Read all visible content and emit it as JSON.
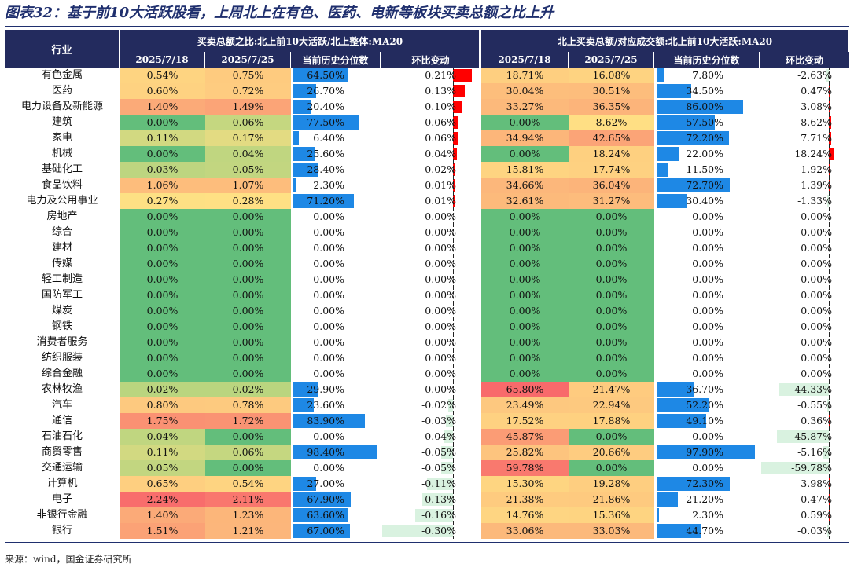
{
  "title": "图表32：基于前10大活跃股看，上周北上在有色、医药、电新等板块买卖总额之比上升",
  "source": "来源：wind，国金证券研究所",
  "header": {
    "industry": "行业",
    "group_left": "买卖总额之比:北上前10大活跃/北上整体:MA20",
    "group_right": "北上买卖总额/对应成交额:北上前10大活跃:MA20",
    "col_date1": "2025/7/18",
    "col_date2": "2025/7/25",
    "col_pct": "当前历史分位数",
    "col_chg": "环比变动"
  },
  "colors": {
    "header_bg": "#232b5e",
    "green": "#63be7b",
    "light_green": "#b5d47f",
    "yellow": "#ffe084",
    "orange": "#fcb47a",
    "red": "#f8696b",
    "blue_bar": "#1e88e5",
    "neg_bar": "#d9f2e0",
    "pos_bar": "#ff0000"
  },
  "rows": [
    {
      "industry": "有色金属",
      "l_d1": "0.54%",
      "l_d1_val": 0.54,
      "l_d2": "0.75%",
      "l_d2_val": 0.75,
      "l_pct": "64.50%",
      "l_pct_val": 64.5,
      "l_chg": "0.21%",
      "l_chg_val": 0.21,
      "r_d1": "18.71%",
      "r_d1_val": 18.71,
      "r_d2": "16.08%",
      "r_d2_val": 16.08,
      "r_pct": "7.80%",
      "r_pct_val": 7.8,
      "r_chg": "-2.63%",
      "r_chg_val": -2.63
    },
    {
      "industry": "医药",
      "l_d1": "0.60%",
      "l_d1_val": 0.6,
      "l_d2": "0.72%",
      "l_d2_val": 0.72,
      "l_pct": "26.70%",
      "l_pct_val": 26.7,
      "l_chg": "0.13%",
      "l_chg_val": 0.13,
      "r_d1": "30.04%",
      "r_d1_val": 30.04,
      "r_d2": "30.51%",
      "r_d2_val": 30.51,
      "r_pct": "34.50%",
      "r_pct_val": 34.5,
      "r_chg": "0.47%",
      "r_chg_val": 0.47
    },
    {
      "industry": "电力设备及新能源",
      "l_d1": "1.40%",
      "l_d1_val": 1.4,
      "l_d2": "1.49%",
      "l_d2_val": 1.49,
      "l_pct": "20.40%",
      "l_pct_val": 20.4,
      "l_chg": "0.10%",
      "l_chg_val": 0.1,
      "r_d1": "33.27%",
      "r_d1_val": 33.27,
      "r_d2": "36.35%",
      "r_d2_val": 36.35,
      "r_pct": "86.00%",
      "r_pct_val": 86.0,
      "r_chg": "3.08%",
      "r_chg_val": 3.08
    },
    {
      "industry": "建筑",
      "l_d1": "0.00%",
      "l_d1_val": 0.0,
      "l_d2": "0.06%",
      "l_d2_val": 0.06,
      "l_pct": "77.50%",
      "l_pct_val": 77.5,
      "l_chg": "0.06%",
      "l_chg_val": 0.06,
      "r_d1": "0.00%",
      "r_d1_val": 0.0,
      "r_d2": "8.62%",
      "r_d2_val": 8.62,
      "r_pct": "57.50%",
      "r_pct_val": 57.5,
      "r_chg": "8.62%",
      "r_chg_val": 8.62
    },
    {
      "industry": "家电",
      "l_d1": "0.11%",
      "l_d1_val": 0.11,
      "l_d2": "0.17%",
      "l_d2_val": 0.17,
      "l_pct": "6.40%",
      "l_pct_val": 6.4,
      "l_chg": "0.06%",
      "l_chg_val": 0.06,
      "r_d1": "34.94%",
      "r_d1_val": 34.94,
      "r_d2": "42.65%",
      "r_d2_val": 42.65,
      "r_pct": "72.20%",
      "r_pct_val": 72.2,
      "r_chg": "7.71%",
      "r_chg_val": 7.71
    },
    {
      "industry": "机械",
      "l_d1": "0.00%",
      "l_d1_val": 0.0,
      "l_d2": "0.04%",
      "l_d2_val": 0.04,
      "l_pct": "25.60%",
      "l_pct_val": 25.6,
      "l_chg": "0.04%",
      "l_chg_val": 0.04,
      "r_d1": "0.00%",
      "r_d1_val": 0.0,
      "r_d2": "18.24%",
      "r_d2_val": 18.24,
      "r_pct": "22.00%",
      "r_pct_val": 22.0,
      "r_chg": "18.24%",
      "r_chg_val": 18.24
    },
    {
      "industry": "基础化工",
      "l_d1": "0.03%",
      "l_d1_val": 0.03,
      "l_d2": "0.05%",
      "l_d2_val": 0.05,
      "l_pct": "28.40%",
      "l_pct_val": 28.4,
      "l_chg": "0.02%",
      "l_chg_val": 0.02,
      "r_d1": "15.81%",
      "r_d1_val": 15.81,
      "r_d2": "17.74%",
      "r_d2_val": 17.74,
      "r_pct": "11.50%",
      "r_pct_val": 11.5,
      "r_chg": "1.92%",
      "r_chg_val": 1.92
    },
    {
      "industry": "食品饮料",
      "l_d1": "1.06%",
      "l_d1_val": 1.06,
      "l_d2": "1.07%",
      "l_d2_val": 1.07,
      "l_pct": "2.30%",
      "l_pct_val": 2.3,
      "l_chg": "0.01%",
      "l_chg_val": 0.01,
      "r_d1": "34.66%",
      "r_d1_val": 34.66,
      "r_d2": "36.04%",
      "r_d2_val": 36.04,
      "r_pct": "72.70%",
      "r_pct_val": 72.7,
      "r_chg": "1.39%",
      "r_chg_val": 1.39
    },
    {
      "industry": "电力及公用事业",
      "l_d1": "0.27%",
      "l_d1_val": 0.27,
      "l_d2": "0.28%",
      "l_d2_val": 0.28,
      "l_pct": "71.20%",
      "l_pct_val": 71.2,
      "l_chg": "0.01%",
      "l_chg_val": 0.01,
      "r_d1": "32.61%",
      "r_d1_val": 32.61,
      "r_d2": "31.27%",
      "r_d2_val": 31.27,
      "r_pct": "30.40%",
      "r_pct_val": 30.4,
      "r_chg": "-1.33%",
      "r_chg_val": -1.33
    },
    {
      "industry": "房地产",
      "l_d1": "0.00%",
      "l_d1_val": 0,
      "l_d2": "0.00%",
      "l_d2_val": 0,
      "l_pct": "0.00%",
      "l_pct_val": 0,
      "l_chg": "0.00%",
      "l_chg_val": 0,
      "r_d1": "0.00%",
      "r_d1_val": 0,
      "r_d2": "0.00%",
      "r_d2_val": 0,
      "r_pct": "0.00%",
      "r_pct_val": 0,
      "r_chg": "0.00%",
      "r_chg_val": 0
    },
    {
      "industry": "综合",
      "l_d1": "0.00%",
      "l_d1_val": 0,
      "l_d2": "0.00%",
      "l_d2_val": 0,
      "l_pct": "0.00%",
      "l_pct_val": 0,
      "l_chg": "0.00%",
      "l_chg_val": 0,
      "r_d1": "0.00%",
      "r_d1_val": 0,
      "r_d2": "0.00%",
      "r_d2_val": 0,
      "r_pct": "0.00%",
      "r_pct_val": 0,
      "r_chg": "0.00%",
      "r_chg_val": 0
    },
    {
      "industry": "建材",
      "l_d1": "0.00%",
      "l_d1_val": 0,
      "l_d2": "0.00%",
      "l_d2_val": 0,
      "l_pct": "0.00%",
      "l_pct_val": 0,
      "l_chg": "0.00%",
      "l_chg_val": 0,
      "r_d1": "0.00%",
      "r_d1_val": 0,
      "r_d2": "0.00%",
      "r_d2_val": 0,
      "r_pct": "0.00%",
      "r_pct_val": 0,
      "r_chg": "0.00%",
      "r_chg_val": 0
    },
    {
      "industry": "传媒",
      "l_d1": "0.00%",
      "l_d1_val": 0,
      "l_d2": "0.00%",
      "l_d2_val": 0,
      "l_pct": "0.00%",
      "l_pct_val": 0,
      "l_chg": "0.00%",
      "l_chg_val": 0,
      "r_d1": "0.00%",
      "r_d1_val": 0,
      "r_d2": "0.00%",
      "r_d2_val": 0,
      "r_pct": "0.00%",
      "r_pct_val": 0,
      "r_chg": "0.00%",
      "r_chg_val": 0
    },
    {
      "industry": "轻工制造",
      "l_d1": "0.00%",
      "l_d1_val": 0,
      "l_d2": "0.00%",
      "l_d2_val": 0,
      "l_pct": "0.00%",
      "l_pct_val": 0,
      "l_chg": "0.00%",
      "l_chg_val": 0,
      "r_d1": "0.00%",
      "r_d1_val": 0,
      "r_d2": "0.00%",
      "r_d2_val": 0,
      "r_pct": "0.00%",
      "r_pct_val": 0,
      "r_chg": "0.00%",
      "r_chg_val": 0
    },
    {
      "industry": "国防军工",
      "l_d1": "0.00%",
      "l_d1_val": 0,
      "l_d2": "0.00%",
      "l_d2_val": 0,
      "l_pct": "0.00%",
      "l_pct_val": 0,
      "l_chg": "0.00%",
      "l_chg_val": 0,
      "r_d1": "0.00%",
      "r_d1_val": 0,
      "r_d2": "0.00%",
      "r_d2_val": 0,
      "r_pct": "0.00%",
      "r_pct_val": 0,
      "r_chg": "0.00%",
      "r_chg_val": 0
    },
    {
      "industry": "煤炭",
      "l_d1": "0.00%",
      "l_d1_val": 0,
      "l_d2": "0.00%",
      "l_d2_val": 0,
      "l_pct": "0.00%",
      "l_pct_val": 0,
      "l_chg": "0.00%",
      "l_chg_val": 0,
      "r_d1": "0.00%",
      "r_d1_val": 0,
      "r_d2": "0.00%",
      "r_d2_val": 0,
      "r_pct": "0.00%",
      "r_pct_val": 0,
      "r_chg": "0.00%",
      "r_chg_val": 0
    },
    {
      "industry": "钢铁",
      "l_d1": "0.00%",
      "l_d1_val": 0,
      "l_d2": "0.00%",
      "l_d2_val": 0,
      "l_pct": "0.00%",
      "l_pct_val": 0,
      "l_chg": "0.00%",
      "l_chg_val": 0,
      "r_d1": "0.00%",
      "r_d1_val": 0,
      "r_d2": "0.00%",
      "r_d2_val": 0,
      "r_pct": "0.00%",
      "r_pct_val": 0,
      "r_chg": "0.00%",
      "r_chg_val": 0
    },
    {
      "industry": "消费者服务",
      "l_d1": "0.00%",
      "l_d1_val": 0,
      "l_d2": "0.00%",
      "l_d2_val": 0,
      "l_pct": "0.00%",
      "l_pct_val": 0,
      "l_chg": "0.00%",
      "l_chg_val": 0,
      "r_d1": "0.00%",
      "r_d1_val": 0,
      "r_d2": "0.00%",
      "r_d2_val": 0,
      "r_pct": "0.00%",
      "r_pct_val": 0,
      "r_chg": "0.00%",
      "r_chg_val": 0
    },
    {
      "industry": "纺织服装",
      "l_d1": "0.00%",
      "l_d1_val": 0,
      "l_d2": "0.00%",
      "l_d2_val": 0,
      "l_pct": "0.00%",
      "l_pct_val": 0,
      "l_chg": "0.00%",
      "l_chg_val": 0,
      "r_d1": "0.00%",
      "r_d1_val": 0,
      "r_d2": "0.00%",
      "r_d2_val": 0,
      "r_pct": "0.00%",
      "r_pct_val": 0,
      "r_chg": "0.00%",
      "r_chg_val": 0
    },
    {
      "industry": "综合金融",
      "l_d1": "0.00%",
      "l_d1_val": 0,
      "l_d2": "0.00%",
      "l_d2_val": 0,
      "l_pct": "0.00%",
      "l_pct_val": 0,
      "l_chg": "0.00%",
      "l_chg_val": 0,
      "r_d1": "0.00%",
      "r_d1_val": 0,
      "r_d2": "0.00%",
      "r_d2_val": 0,
      "r_pct": "0.00%",
      "r_pct_val": 0,
      "r_chg": "0.00%",
      "r_chg_val": 0
    },
    {
      "industry": "农林牧渔",
      "l_d1": "0.02%",
      "l_d1_val": 0.02,
      "l_d2": "0.02%",
      "l_d2_val": 0.02,
      "l_pct": "29.90%",
      "l_pct_val": 29.9,
      "l_chg": "0.00%",
      "l_chg_val": 0.0,
      "r_d1": "65.80%",
      "r_d1_val": 65.8,
      "r_d2": "21.47%",
      "r_d2_val": 21.47,
      "r_pct": "36.70%",
      "r_pct_val": 36.7,
      "r_chg": "-44.33%",
      "r_chg_val": -44.33
    },
    {
      "industry": "汽车",
      "l_d1": "0.80%",
      "l_d1_val": 0.8,
      "l_d2": "0.78%",
      "l_d2_val": 0.78,
      "l_pct": "23.60%",
      "l_pct_val": 23.6,
      "l_chg": "-0.02%",
      "l_chg_val": -0.02,
      "r_d1": "23.49%",
      "r_d1_val": 23.49,
      "r_d2": "22.94%",
      "r_d2_val": 22.94,
      "r_pct": "52.20%",
      "r_pct_val": 52.2,
      "r_chg": "-0.55%",
      "r_chg_val": -0.55
    },
    {
      "industry": "通信",
      "l_d1": "1.75%",
      "l_d1_val": 1.75,
      "l_d2": "1.72%",
      "l_d2_val": 1.72,
      "l_pct": "83.90%",
      "l_pct_val": 83.9,
      "l_chg": "-0.03%",
      "l_chg_val": -0.03,
      "r_d1": "17.52%",
      "r_d1_val": 17.52,
      "r_d2": "17.88%",
      "r_d2_val": 17.88,
      "r_pct": "49.10%",
      "r_pct_val": 49.1,
      "r_chg": "0.36%",
      "r_chg_val": 0.36
    },
    {
      "industry": "石油石化",
      "l_d1": "0.04%",
      "l_d1_val": 0.04,
      "l_d2": "0.00%",
      "l_d2_val": 0.0,
      "l_pct": "0.00%",
      "l_pct_val": 0.0,
      "l_chg": "-0.04%",
      "l_chg_val": -0.04,
      "r_d1": "45.87%",
      "r_d1_val": 45.87,
      "r_d2": "0.00%",
      "r_d2_val": 0.0,
      "r_pct": "0.00%",
      "r_pct_val": 0.0,
      "r_chg": "-45.87%",
      "r_chg_val": -45.87
    },
    {
      "industry": "商贸零售",
      "l_d1": "0.11%",
      "l_d1_val": 0.11,
      "l_d2": "0.06%",
      "l_d2_val": 0.06,
      "l_pct": "98.40%",
      "l_pct_val": 98.4,
      "l_chg": "-0.05%",
      "l_chg_val": -0.05,
      "r_d1": "25.82%",
      "r_d1_val": 25.82,
      "r_d2": "20.66%",
      "r_d2_val": 20.66,
      "r_pct": "97.90%",
      "r_pct_val": 97.9,
      "r_chg": "-5.16%",
      "r_chg_val": -5.16
    },
    {
      "industry": "交通运输",
      "l_d1": "0.05%",
      "l_d1_val": 0.05,
      "l_d2": "0.00%",
      "l_d2_val": 0.0,
      "l_pct": "0.00%",
      "l_pct_val": 0.0,
      "l_chg": "-0.05%",
      "l_chg_val": -0.05,
      "r_d1": "59.78%",
      "r_d1_val": 59.78,
      "r_d2": "0.00%",
      "r_d2_val": 0.0,
      "r_pct": "0.00%",
      "r_pct_val": 0.0,
      "r_chg": "-59.78%",
      "r_chg_val": -59.78
    },
    {
      "industry": "计算机",
      "l_d1": "0.65%",
      "l_d1_val": 0.65,
      "l_d2": "0.54%",
      "l_d2_val": 0.54,
      "l_pct": "27.00%",
      "l_pct_val": 27.0,
      "l_chg": "-0.11%",
      "l_chg_val": -0.11,
      "r_d1": "15.30%",
      "r_d1_val": 15.3,
      "r_d2": "19.28%",
      "r_d2_val": 19.28,
      "r_pct": "72.30%",
      "r_pct_val": 72.3,
      "r_chg": "3.98%",
      "r_chg_val": 3.98
    },
    {
      "industry": "电子",
      "l_d1": "2.24%",
      "l_d1_val": 2.24,
      "l_d2": "2.11%",
      "l_d2_val": 2.11,
      "l_pct": "67.90%",
      "l_pct_val": 67.9,
      "l_chg": "-0.13%",
      "l_chg_val": -0.13,
      "r_d1": "21.38%",
      "r_d1_val": 21.38,
      "r_d2": "21.86%",
      "r_d2_val": 21.86,
      "r_pct": "21.20%",
      "r_pct_val": 21.2,
      "r_chg": "0.47%",
      "r_chg_val": 0.47
    },
    {
      "industry": "非银行金融",
      "l_d1": "1.40%",
      "l_d1_val": 1.4,
      "l_d2": "1.23%",
      "l_d2_val": 1.23,
      "l_pct": "63.60%",
      "l_pct_val": 63.6,
      "l_chg": "-0.16%",
      "l_chg_val": -0.16,
      "r_d1": "14.76%",
      "r_d1_val": 14.76,
      "r_d2": "15.36%",
      "r_d2_val": 15.36,
      "r_pct": "2.30%",
      "r_pct_val": 2.3,
      "r_chg": "0.59%",
      "r_chg_val": 0.59
    },
    {
      "industry": "银行",
      "l_d1": "1.51%",
      "l_d1_val": 1.51,
      "l_d2": "1.21%",
      "l_d2_val": 1.21,
      "l_pct": "67.00%",
      "l_pct_val": 67.0,
      "l_chg": "-0.30%",
      "l_chg_val": -0.3,
      "r_d1": "33.06%",
      "r_d1_val": 33.06,
      "r_d2": "33.03%",
      "r_d2_val": 33.03,
      "r_pct": "44.70%",
      "r_pct_val": 44.7,
      "r_chg": "-0.03%",
      "r_chg_val": -0.03
    }
  ]
}
